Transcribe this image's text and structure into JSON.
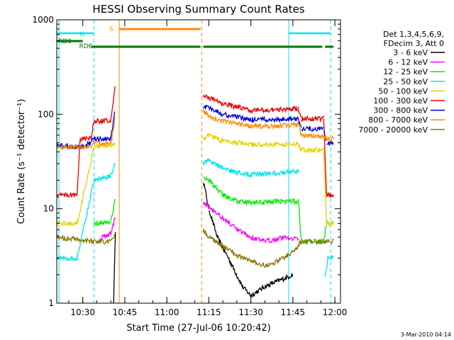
{
  "chart_data": {
    "type": "line",
    "title": "HESSI Observing Summary Count Rates",
    "xlabel": "Start Time (27-Jul-06 10:20:42)",
    "ylabel": "Count Rate (s⁻¹ detector⁻¹)",
    "xlim": [
      "10:20:42",
      "12:02:00"
    ],
    "ylim": [
      1,
      1000
    ],
    "y_scale": "log",
    "x_ticks": [
      "10:30",
      "10:45",
      "11:00",
      "11:15",
      "11:30",
      "11:45",
      "12:00"
    ],
    "y_ticks": [
      "1",
      "10",
      "100",
      "1000"
    ],
    "legend": {
      "header_lines": [
        "Det 1,3,4,5,6,9,",
        "FDecim 3, Att 0"
      ],
      "position": "right"
    },
    "stamp": "3-Mar-2010 04:14",
    "flags": [
      {
        "label": "N",
        "color": "#00e5ee",
        "segments": [
          [
            "10:20:42",
            "10:34:00"
          ],
          [
            "11:43:30",
            "11:58:30"
          ]
        ]
      },
      {
        "label": "S",
        "color": "#ff8c00",
        "segments": [
          [
            "10:43:00",
            "11:12:00"
          ]
        ]
      },
      {
        "label": "RD0",
        "color": "#007700",
        "segments": [
          [
            "10:20:42",
            "10:30:00"
          ]
        ]
      },
      {
        "label": "RD6",
        "color": "#007700",
        "segments": [
          [
            "10:33:00",
            "11:12:00"
          ],
          [
            "11:13:00",
            "11:55:30"
          ],
          [
            "11:56:30",
            "11:59:30"
          ]
        ]
      }
    ],
    "vlines": [
      {
        "t": "10:21:30",
        "color": "#00e5ee",
        "style": "solid"
      },
      {
        "t": "10:34:00",
        "color": "#00e5ee",
        "style": "dashed"
      },
      {
        "t": "10:43:00",
        "color": "#ff8c00",
        "style": "solid"
      },
      {
        "t": "11:12:30",
        "color": "#ff8c00",
        "style": "dashed"
      },
      {
        "t": "11:43:30",
        "color": "#00e5ee",
        "style": "solid"
      },
      {
        "t": "11:58:30",
        "color": "#00e5ee",
        "style": "dashed"
      }
    ],
    "series": [
      {
        "name": "3 - 6 keV",
        "color": "#000000",
        "points": [
          [
            "10:20:42",
            null
          ],
          [
            "10:41:00",
            1
          ],
          [
            "10:41:40",
            6
          ],
          [
            "10:42:40",
            null
          ],
          [
            "11:12:30",
            null
          ],
          [
            "11:13:00",
            20
          ],
          [
            "11:15:00",
            10
          ],
          [
            "11:18:00",
            5
          ],
          [
            "11:22:00",
            3
          ],
          [
            "11:27:00",
            1.5
          ],
          [
            "11:30:00",
            1.2
          ],
          [
            "11:35:00",
            1.5
          ],
          [
            "11:45:00",
            2
          ],
          [
            "11:46:00",
            null
          ]
        ]
      },
      {
        "name": "6 - 12 keV",
        "color": "#ff00ff",
        "points": [
          [
            "10:20:42",
            null
          ],
          [
            "10:36:00",
            4.8
          ],
          [
            "10:40:00",
            5.5
          ],
          [
            "10:41:30",
            8
          ],
          [
            "10:42:40",
            null
          ],
          [
            "11:12:30",
            null
          ],
          [
            "11:13:00",
            12
          ],
          [
            "11:16:00",
            10
          ],
          [
            "11:20:00",
            8
          ],
          [
            "11:25:00",
            6
          ],
          [
            "11:30:00",
            5
          ],
          [
            "11:35:00",
            4.5
          ],
          [
            "11:42:00",
            5
          ],
          [
            "11:47:00",
            4.8
          ],
          [
            "11:48:00",
            null
          ]
        ]
      },
      {
        "name": "12 - 25 keV",
        "color": "#00ee00",
        "points": [
          [
            "10:20:42",
            null
          ],
          [
            "10:34:00",
            7
          ],
          [
            "10:40:00",
            7.3
          ],
          [
            "10:41:30",
            12
          ],
          [
            "10:42:40",
            null
          ],
          [
            "11:12:30",
            null
          ],
          [
            "11:13:00",
            22
          ],
          [
            "11:15:00",
            20
          ],
          [
            "11:20:00",
            14
          ],
          [
            "11:25:00",
            12
          ],
          [
            "11:30:00",
            11.5
          ],
          [
            "11:40:00",
            12
          ],
          [
            "11:47:00",
            12
          ],
          [
            "11:48:00",
            4.5
          ],
          [
            "11:56:00",
            4.5
          ],
          [
            "11:57:00",
            7
          ],
          [
            "11:59:30",
            7
          ]
        ]
      },
      {
        "name": "25 - 50 keV",
        "color": "#00e5ee",
        "points": [
          [
            "10:20:42",
            3
          ],
          [
            "10:28:00",
            3
          ],
          [
            "10:34:00",
            20
          ],
          [
            "10:40:00",
            22
          ],
          [
            "10:41:30",
            30
          ],
          [
            "10:42:40",
            null
          ],
          [
            "11:12:30",
            null
          ],
          [
            "11:13:00",
            30
          ],
          [
            "11:15:00",
            32
          ],
          [
            "11:20:00",
            27
          ],
          [
            "11:25:00",
            24
          ],
          [
            "11:30:00",
            23
          ],
          [
            "11:40:00",
            24
          ],
          [
            "11:47:00",
            25
          ],
          [
            "11:48:00",
            null
          ],
          [
            "11:56:30",
            2
          ],
          [
            "11:57:30",
            3
          ],
          [
            "11:59:30",
            3
          ]
        ]
      },
      {
        "name": "50 - 100 keV",
        "color": "#e6d200",
        "points": [
          [
            "10:20:42",
            7
          ],
          [
            "10:28:00",
            7
          ],
          [
            "10:34:00",
            45
          ],
          [
            "10:40:00",
            48
          ],
          [
            "10:41:30",
            50
          ],
          [
            "10:42:40",
            null
          ],
          [
            "11:12:30",
            null
          ],
          [
            "11:13:00",
            55
          ],
          [
            "11:15:00",
            60
          ],
          [
            "11:20:00",
            52
          ],
          [
            "11:30:00",
            48
          ],
          [
            "11:40:00",
            48
          ],
          [
            "11:47:00",
            48
          ],
          [
            "11:48:00",
            42
          ],
          [
            "11:56:00",
            42
          ],
          [
            "11:57:00",
            7
          ],
          [
            "11:59:30",
            7
          ]
        ]
      },
      {
        "name": "100 - 300 keV",
        "color": "#ee0000",
        "points": [
          [
            "10:20:42",
            14
          ],
          [
            "10:28:00",
            14
          ],
          [
            "10:29:00",
            55
          ],
          [
            "10:33:00",
            55
          ],
          [
            "10:34:00",
            85
          ],
          [
            "10:40:00",
            85
          ],
          [
            "10:41:30",
            190
          ],
          [
            "10:42:40",
            null
          ],
          [
            "11:12:30",
            null
          ],
          [
            "11:13:00",
            160
          ],
          [
            "11:15:00",
            150
          ],
          [
            "11:20:00",
            130
          ],
          [
            "11:30:00",
            110
          ],
          [
            "11:40:00",
            112
          ],
          [
            "11:47:00",
            115
          ],
          [
            "11:48:00",
            90
          ],
          [
            "11:56:00",
            90
          ],
          [
            "11:57:00",
            14
          ],
          [
            "11:59:30",
            14
          ]
        ]
      },
      {
        "name": "300 - 800 keV",
        "color": "#0000dd",
        "points": [
          [
            "10:20:42",
            47
          ],
          [
            "10:28:00",
            45
          ],
          [
            "10:29:00",
            45
          ],
          [
            "10:33:00",
            50
          ],
          [
            "10:34:00",
            55
          ],
          [
            "10:40:00",
            55
          ],
          [
            "10:41:30",
            110
          ],
          [
            "10:42:40",
            null
          ],
          [
            "11:12:30",
            null
          ],
          [
            "11:13:00",
            120
          ],
          [
            "11:15:00",
            120
          ],
          [
            "11:20:00",
            100
          ],
          [
            "11:30:00",
            88
          ],
          [
            "11:40:00",
            88
          ],
          [
            "11:47:00",
            90
          ],
          [
            "11:48:00",
            70
          ],
          [
            "11:56:00",
            70
          ],
          [
            "11:57:00",
            50
          ],
          [
            "11:59:30",
            50
          ]
        ]
      },
      {
        "name": "800 - 7000 keV",
        "color": "#ff8c00",
        "points": [
          [
            "10:20:42",
            45
          ],
          [
            "10:28:00",
            45
          ],
          [
            "10:33:00",
            45
          ],
          [
            "10:34:00",
            50
          ],
          [
            "10:40:00",
            48
          ],
          [
            "10:41:30",
            90
          ],
          [
            "10:42:40",
            null
          ],
          [
            "11:12:30",
            null
          ],
          [
            "11:13:00",
            110
          ],
          [
            "11:15:00",
            95
          ],
          [
            "11:20:00",
            85
          ],
          [
            "11:30:00",
            75
          ],
          [
            "11:40:00",
            75
          ],
          [
            "11:47:00",
            78
          ],
          [
            "11:48:00",
            60
          ],
          [
            "11:56:00",
            58
          ],
          [
            "11:57:00",
            55
          ],
          [
            "11:59:30",
            55
          ]
        ]
      },
      {
        "name": "7000 - 20000 keV",
        "color": "#8b7500",
        "points": [
          [
            "10:20:42",
            5
          ],
          [
            "10:34:00",
            4.5
          ],
          [
            "10:40:00",
            4.5
          ],
          [
            "10:41:30",
            5.5
          ],
          [
            "10:42:40",
            null
          ],
          [
            "11:12:30",
            null
          ],
          [
            "11:13:00",
            6
          ],
          [
            "11:15:00",
            5
          ],
          [
            "11:20:00",
            4
          ],
          [
            "11:25:00",
            3.2
          ],
          [
            "11:30:00",
            2.8
          ],
          [
            "11:35:00",
            2.5
          ],
          [
            "11:40:00",
            2.8
          ],
          [
            "11:45:00",
            3.5
          ],
          [
            "11:48:00",
            4.5
          ],
          [
            "11:59:30",
            4.5
          ]
        ]
      }
    ]
  }
}
